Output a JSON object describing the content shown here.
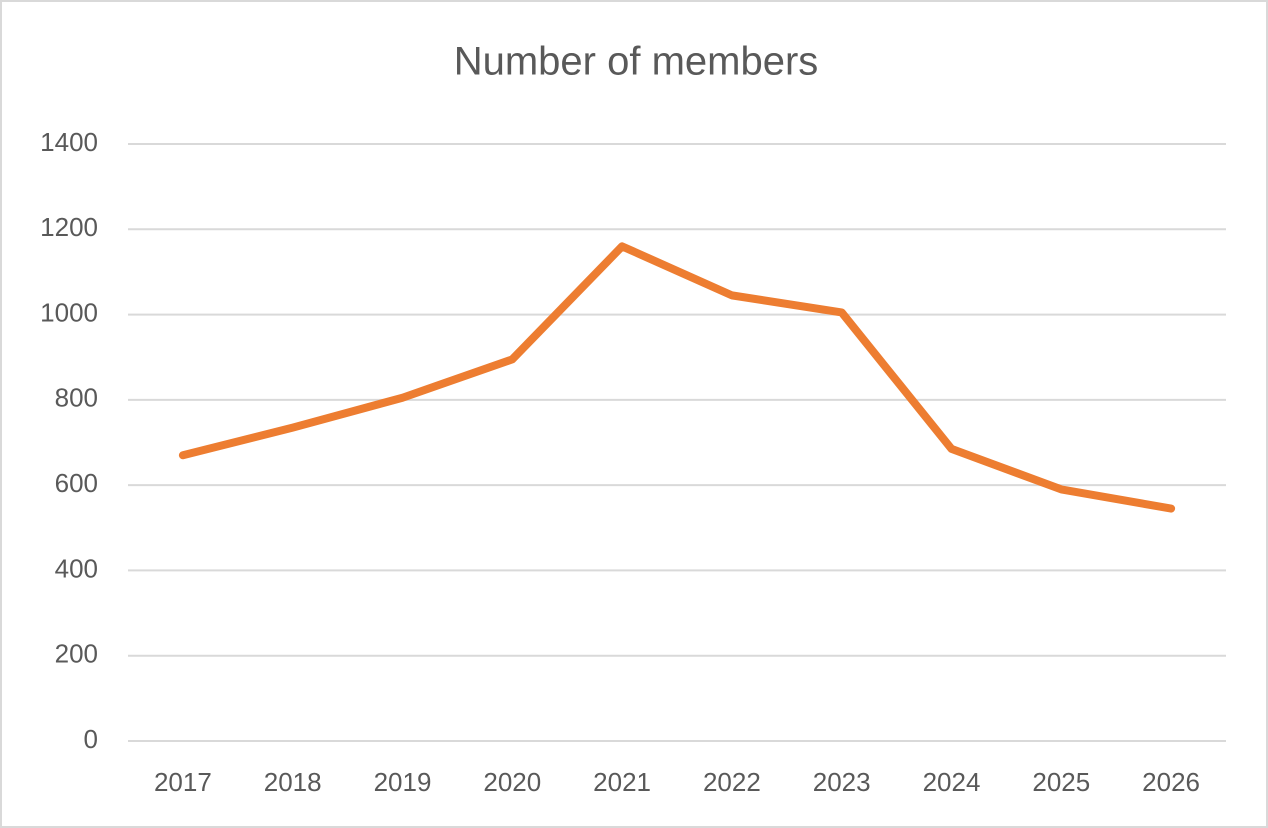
{
  "chart_data": {
    "type": "line",
    "title": "Number of members",
    "categories": [
      "2017",
      "2018",
      "2019",
      "2020",
      "2021",
      "2022",
      "2023",
      "2024",
      "2025",
      "2026"
    ],
    "series": [
      {
        "name": "Number of members",
        "color": "#ed7d31",
        "values": [
          670,
          735,
          805,
          895,
          1160,
          1045,
          1005,
          685,
          590,
          545
        ]
      }
    ],
    "ylim": [
      0,
      1400
    ],
    "yticks": [
      0,
      200,
      400,
      600,
      800,
      1000,
      1200,
      1400
    ],
    "grid": true
  }
}
